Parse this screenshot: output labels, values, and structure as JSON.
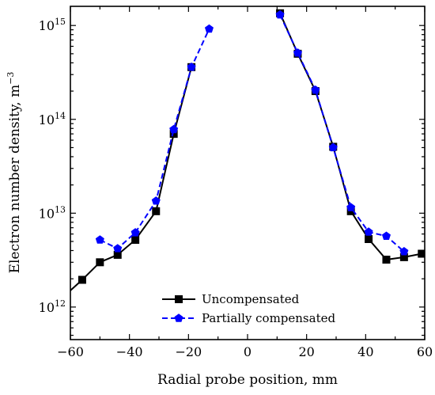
{
  "chart_data": {
    "type": "line",
    "xlabel": "Radial probe position, mm",
    "ylabel": "Electron number density, m",
    "ylabel_unit_exponent": "−3",
    "xlim": [
      -60,
      60
    ],
    "ylim": [
      450000000000.0,
      1600000000000000.0
    ],
    "yscale": "log",
    "x_ticks": [
      -60,
      -40,
      -20,
      0,
      20,
      40,
      60
    ],
    "x_tick_labels": [
      "−60",
      "−40",
      "−20",
      "0",
      "20",
      "40",
      "60"
    ],
    "y_ticks": [
      1000000000000.0,
      10000000000000.0,
      100000000000000.0,
      1000000000000000.0
    ],
    "y_tick_labels": [
      {
        "base": "10",
        "exp": "12"
      },
      {
        "base": "10",
        "exp": "13"
      },
      {
        "base": "10",
        "exp": "14"
      },
      {
        "base": "10",
        "exp": "15"
      }
    ],
    "grid": false,
    "legend_position": "bottom-center",
    "series": [
      {
        "name": "Uncompensated",
        "color": "#000000",
        "line_style": "solid",
        "marker": "square",
        "segments": [
          {
            "x": [
              -60,
              -56,
              -50,
              -44,
              -38,
              -31,
              -25,
              -19
            ],
            "y": [
              1500000000000.0,
              1950000000000.0,
              3000000000000.0,
              3600000000000.0,
              5200000000000.0,
              10500000000000.0,
              70000000000000.0,
              360000000000000.0
            ]
          },
          {
            "x": [
              11,
              17,
              23,
              29,
              35,
              41,
              47,
              53,
              59,
              60
            ],
            "y": [
              1350000000000000.0,
              500000000000000.0,
              200000000000000.0,
              51000000000000.0,
              10500000000000.0,
              5300000000000.0,
              3200000000000.0,
              3400000000000.0,
              3700000000000.0,
              3700000000000.0
            ]
          }
        ]
      },
      {
        "name": "Partially compensated",
        "color": "#0000ff",
        "line_style": "dashed",
        "marker": "pentagon",
        "segments": [
          {
            "x": [
              -50,
              -44,
              -38,
              -31,
              -25,
              -19,
              -13
            ],
            "y": [
              5200000000000.0,
              4200000000000.0,
              6200000000000.0,
              13500000000000.0,
              78000000000000.0,
              360000000000000.0,
              920000000000000.0
            ]
          },
          {
            "x": [
              11,
              17,
              23,
              29,
              35,
              41,
              47,
              53
            ],
            "y": [
              1300000000000000.0,
              510000000000000.0,
              205000000000000.0,
              50000000000000.0,
              11500000000000.0,
              6300000000000.0,
              5700000000000.0,
              3900000000000.0
            ]
          }
        ]
      }
    ]
  }
}
